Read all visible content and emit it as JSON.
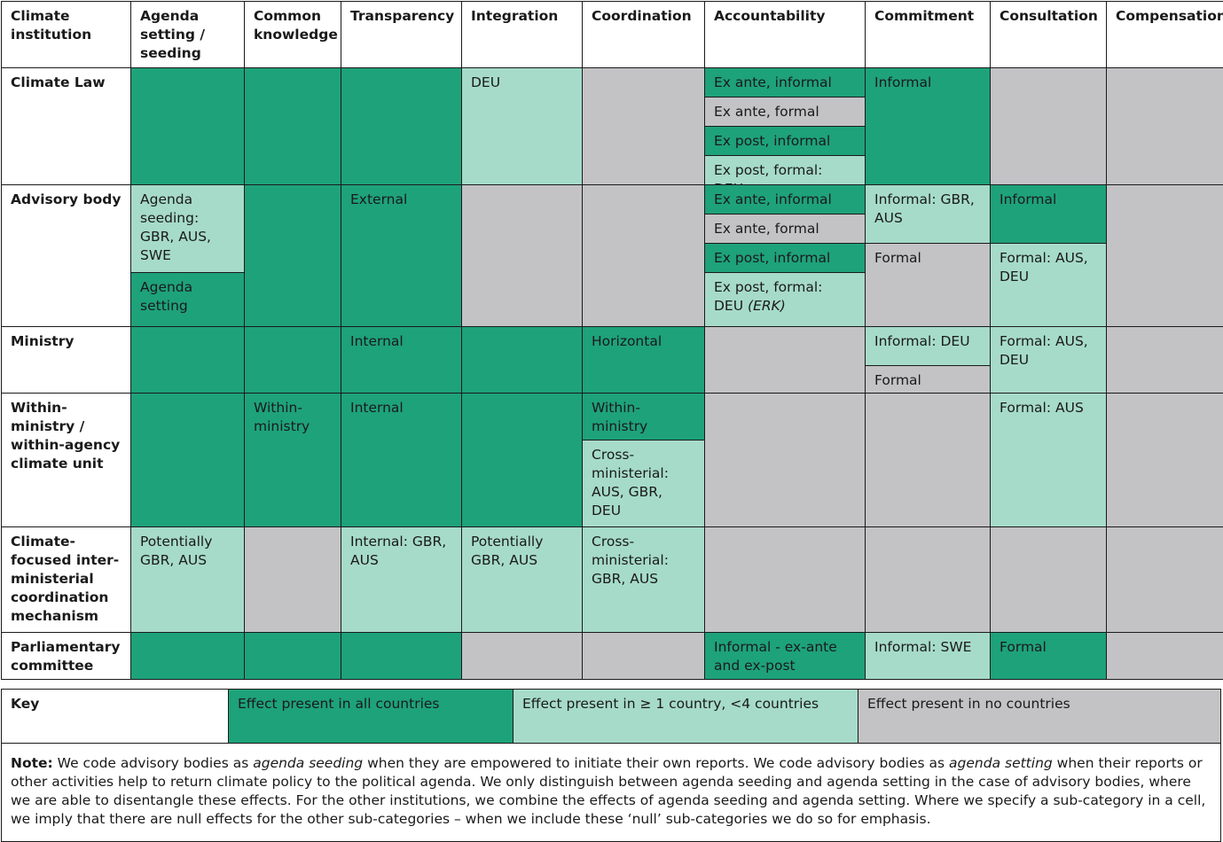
{
  "headers": {
    "h0": "Climate institution",
    "h1": "Agenda setting / seeding",
    "h2": "Common knowledge",
    "h3": "Transparency",
    "h4": "Integration",
    "h5": "Coordination",
    "h6": "Accountability",
    "h7": "Commitment",
    "h8": "Consultation",
    "h9": "Compensation"
  },
  "rows": {
    "climate_law": {
      "label": "Climate Law",
      "integration": "DEU",
      "acc_1": "Ex ante, informal",
      "acc_2": "Ex ante, formal",
      "acc_3": "Ex post, informal",
      "acc_4": "Ex post, formal: DEU",
      "commitment": "Informal"
    },
    "advisory_body": {
      "label": "Advisory body",
      "agenda_seeding": "Agenda seeding: GBR, AUS, SWE",
      "agenda_setting": "Agenda setting",
      "transparency": "External",
      "acc_1": "Ex ante, informal",
      "acc_2": "Ex ante, formal",
      "acc_3": "Ex post, informal",
      "acc_4": "Ex post, formal: DEU",
      "acc_4_italic": "(ERK)",
      "commitment_1": "Informal: GBR, AUS",
      "commitment_2": "Formal",
      "consultation_1": "Informal",
      "consultation_2": "Formal: AUS, DEU"
    },
    "ministry": {
      "label": "Ministry",
      "transparency": "Internal",
      "coordination": "Horizontal",
      "commitment_1": "Informal: DEU",
      "commitment_2": "Formal",
      "consultation": "Formal: AUS, DEU"
    },
    "within_ministry": {
      "label": "Within-ministry / within-agency climate unit",
      "common_knowledge": "Within-ministry",
      "transparency": "Internal",
      "coordination_1": "Within-ministry",
      "coordination_2": "Cross-ministerial: AUS, GBR, DEU",
      "consultation": "Formal: AUS"
    },
    "coordination_mechanism": {
      "label": "Climate-focused inter-ministerial coordination mechanism",
      "agenda": "Potentially GBR, AUS",
      "transparency": "Internal: GBR, AUS",
      "integration": "Potentially GBR, AUS",
      "coordination": "Cross-ministerial: GBR, AUS"
    },
    "parliamentary_committee": {
      "label": "Parliamentary committee",
      "accountability": "Informal - ex-ante and ex-post",
      "commitment": "Informal: SWE",
      "consultation": "Formal"
    }
  },
  "key": {
    "label": "Key",
    "all": "Effect present in all countries",
    "some": "Effect present in ≥ 1 country, <4 countries",
    "none": "Effect present in no countries",
    "colors": {
      "all": "#1ea27a",
      "some": "#a6dbc9",
      "none": "#c3c3c5"
    }
  },
  "note": {
    "label": "Note:",
    "s1": " We code advisory bodies as ",
    "i1": "agenda seeding",
    "s2": " when they are empowered to initiate their own reports. We code advisory bodies as ",
    "i2": "agenda setting",
    "s3": " when their reports or other activities help to return climate policy to the political agenda. We only distinguish between agenda seeding and agenda setting in the case of advisory bodies, where we are able to disentangle these effects. For the other institutions, we combine the effects of agenda seeding and agenda setting. Where we specify a sub-category in a cell, we imply that there are null effects for the other sub-categories – when we include these ‘null’ sub-categories we do so for emphasis."
  }
}
